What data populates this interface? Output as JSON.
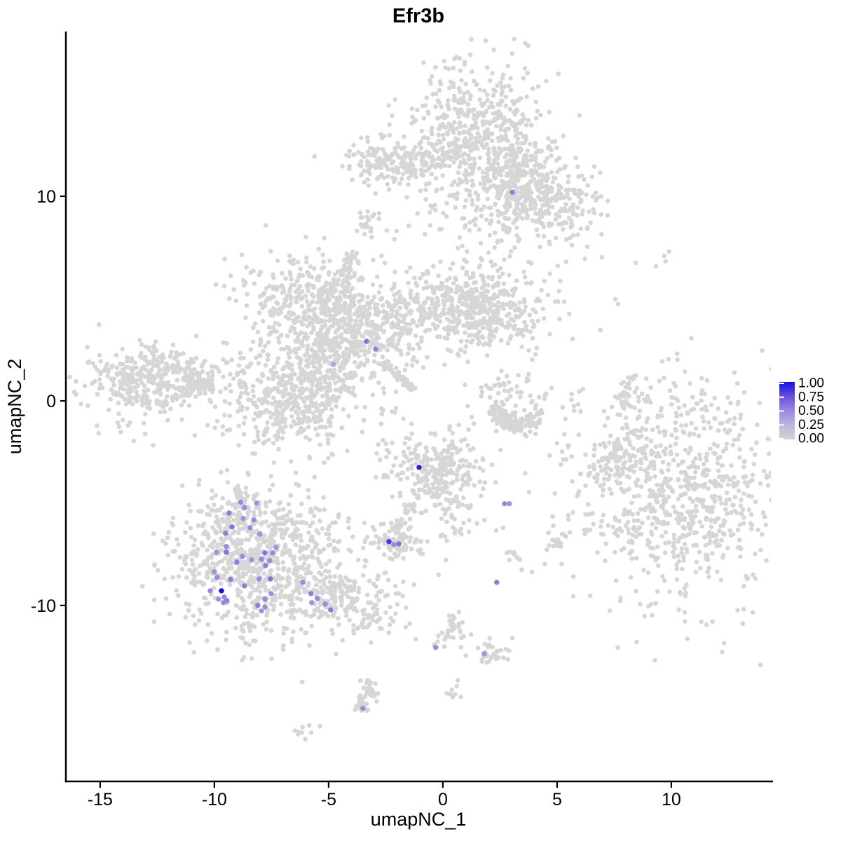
{
  "title": "Efr3b",
  "axes": {
    "x_label": "umapNC_1",
    "y_label": "umapNC_2",
    "x_ticks": [
      -15,
      -10,
      -5,
      0,
      5,
      10
    ],
    "y_ticks": [
      10,
      0,
      -10
    ]
  },
  "legend": {
    "labels": [
      "1.00",
      "0.75",
      "0.50",
      "0.25",
      "0.00"
    ],
    "values": [
      1.0,
      0.75,
      0.5,
      0.25,
      0.0
    ]
  },
  "colors": {
    "background": "#FFFFFF",
    "axis": "#000000",
    "point_gray": "#D6D6D6",
    "ramp": [
      [
        0,
        "#D3D3D3"
      ],
      [
        0.25,
        "#BFB5E3"
      ],
      [
        0.5,
        "#9D87DF"
      ],
      [
        0.75,
        "#6A4FDC"
      ],
      [
        1,
        "#1212E8"
      ]
    ]
  },
  "chart_data": {
    "type": "scatter",
    "title": "Efr3b",
    "xlabel": "umapNC_1",
    "ylabel": "umapNC_2",
    "xlim": [
      -16.47,
      14.36
    ],
    "ylim": [
      -18.6,
      18.05
    ],
    "x_ticks": [
      -15,
      -10,
      -5,
      0,
      5,
      10
    ],
    "y_ticks": [
      10,
      0,
      -10
    ],
    "legend_ticks": [
      1.0,
      0.75,
      0.5,
      0.25,
      0.0
    ],
    "point_radius_gray": 3.3,
    "point_radius_expressing": 3.7,
    "gray_clusters": [
      {
        "name": "top-main",
        "kind": "blob",
        "cx": 1.5,
        "cy": 13.3,
        "sx": 1.35,
        "sy": 1.75,
        "n": 480
      },
      {
        "name": "top-mid",
        "kind": "blob",
        "cx": 3.3,
        "cy": 11.2,
        "sx": 1.0,
        "sy": 1.0,
        "n": 200
      },
      {
        "name": "top-right-arm",
        "kind": "blob",
        "cx": 4.7,
        "cy": 9.6,
        "sx": 1.15,
        "sy": 0.95,
        "n": 230
      },
      {
        "name": "top-left-arm",
        "kind": "blob",
        "cx": -2.95,
        "cy": 11.8,
        "sx": 0.75,
        "sy": 0.65,
        "n": 90
      },
      {
        "name": "top-left-arm2",
        "kind": "blob",
        "cx": -1.6,
        "cy": 11.5,
        "sx": 0.9,
        "sy": 0.4,
        "n": 70
      },
      {
        "name": "top-left-connector",
        "kind": "blob",
        "cx": -0.3,
        "cy": 11.9,
        "sx": 0.8,
        "sy": 0.5,
        "n": 60
      },
      {
        "name": "top-below-sparse",
        "kind": "blob",
        "cx": 1.6,
        "cy": 9.0,
        "sx": 1.6,
        "sy": 0.9,
        "n": 80
      },
      {
        "name": "top-mini",
        "kind": "blob",
        "cx": 3.1,
        "cy": 10.3,
        "sx": 0.55,
        "sy": 0.3,
        "n": 26
      },
      {
        "name": "top-tiny",
        "kind": "blob",
        "cx": -3.3,
        "cy": 8.9,
        "sx": 0.3,
        "sy": 0.45,
        "n": 22
      },
      {
        "name": "center-nw",
        "kind": "blob",
        "cx": -5.75,
        "cy": 4.9,
        "sx": 1.5,
        "sy": 1.1,
        "n": 360
      },
      {
        "name": "center-up-strand",
        "kind": "strand",
        "x1": -4.35,
        "y1": 5.6,
        "x2": -3.95,
        "y2": 7.3,
        "w": 0.18,
        "bow": 0,
        "n": 40
      },
      {
        "name": "center-core",
        "kind": "blob",
        "cx": -3.4,
        "cy": 3.4,
        "sx": 1.3,
        "sy": 1.0,
        "n": 320
      },
      {
        "name": "center-ne-arm",
        "kind": "blob",
        "cx": 0.9,
        "cy": 4.6,
        "sx": 2.1,
        "sy": 1.05,
        "n": 430
      },
      {
        "name": "center-ne-knob",
        "kind": "blob",
        "cx": 1.8,
        "cy": 4.2,
        "sx": 0.7,
        "sy": 0.85,
        "n": 150
      },
      {
        "name": "center-se-streak",
        "kind": "strand",
        "x1": -2.64,
        "y1": 1.85,
        "x2": -1.26,
        "y2": 0.55,
        "w": 0.09,
        "bow": 0,
        "n": 60
      },
      {
        "name": "center-sw-lobe",
        "kind": "blob",
        "cx": -6.5,
        "cy": 0.3,
        "sx": 1.65,
        "sy": 1.35,
        "n": 520
      },
      {
        "name": "center-connector",
        "kind": "blob",
        "cx": -5.1,
        "cy": 2.0,
        "sx": 0.8,
        "sy": 0.8,
        "n": 130
      },
      {
        "name": "left-main",
        "kind": "blob",
        "cx": -12.95,
        "cy": 1.05,
        "sx": 1.45,
        "sy": 0.85,
        "n": 380
      },
      {
        "name": "left-tail",
        "kind": "strand",
        "x1": -11.3,
        "y1": 0.96,
        "x2": -10.1,
        "y2": 0.86,
        "w": 0.25,
        "bow": 0,
        "n": 55
      },
      {
        "name": "left-below",
        "kind": "blob",
        "cx": -13.9,
        "cy": -1.2,
        "sx": 0.5,
        "sy": 0.5,
        "n": 10
      },
      {
        "name": "crescent",
        "kind": "strand",
        "x1": 2.1,
        "y1": -0.3,
        "x2": 4.3,
        "y2": -0.9,
        "w": 0.3,
        "bow": -0.45,
        "n": 130
      },
      {
        "name": "crescent-above",
        "kind": "blob",
        "cx": 3.0,
        "cy": 0.55,
        "sx": 0.95,
        "sy": 0.55,
        "n": 48
      },
      {
        "name": "right-strand",
        "kind": "strand",
        "x1": 7.85,
        "y1": -0.35,
        "x2": 8.35,
        "y2": 1.3,
        "w": 0.13,
        "bow": 0.15,
        "n": 42
      },
      {
        "name": "right-strand-dots",
        "kind": "blob",
        "cx": 8.8,
        "cy": 0.3,
        "sx": 0.25,
        "sy": 0.4,
        "n": 6
      },
      {
        "name": "right-main",
        "kind": "blob",
        "cx": 10.3,
        "cy": -4.5,
        "sx": 2.5,
        "sy": 2.7,
        "n": 850
      },
      {
        "name": "right-appendage",
        "kind": "blob",
        "cx": 7.6,
        "cy": -3.1,
        "sx": 0.45,
        "sy": 0.75,
        "n": 60
      },
      {
        "name": "mid-small",
        "kind": "blob",
        "cx": -0.2,
        "cy": -3.5,
        "sx": 1.05,
        "sy": 0.95,
        "n": 270
      },
      {
        "name": "mid-trail",
        "kind": "blob",
        "cx": 0.45,
        "cy": -5.3,
        "sx": 0.75,
        "sy": 0.95,
        "n": 40
      },
      {
        "name": "mid-strand",
        "kind": "strand",
        "x1": -1.29,
        "y1": -5.0,
        "x2": -2.21,
        "y2": -6.51,
        "w": 0.12,
        "bow": 0,
        "n": 30
      },
      {
        "name": "mid-blob",
        "kind": "blob",
        "cx": -2.1,
        "cy": -6.9,
        "sx": 0.55,
        "sy": 0.42,
        "n": 75
      },
      {
        "name": "mid-blob-right",
        "kind": "blob",
        "cx": -1.1,
        "cy": -7.3,
        "sx": 0.4,
        "sy": 0.25,
        "n": 6
      },
      {
        "name": "bottomleft-main",
        "kind": "blob",
        "cx": -7.9,
        "cy": -7.7,
        "sx": 1.95,
        "sy": 1.75,
        "n": 800
      },
      {
        "name": "bottomleft-tip",
        "kind": "blob",
        "cx": -8.9,
        "cy": -5.3,
        "sx": 0.6,
        "sy": 0.55,
        "n": 70
      },
      {
        "name": "bottomleft-tail",
        "kind": "blob",
        "cx": -4.6,
        "cy": -9.6,
        "sx": 1.35,
        "sy": 0.7,
        "n": 180
      },
      {
        "name": "bottomleft-tail-tip",
        "kind": "blob",
        "cx": -2.9,
        "cy": -10.6,
        "sx": 0.6,
        "sy": 0.4,
        "n": 30
      },
      {
        "name": "bottomleft-below",
        "kind": "blob",
        "cx": -6.2,
        "cy": -11.7,
        "sx": 0.9,
        "sy": 0.4,
        "n": 10
      },
      {
        "name": "low-strand",
        "kind": "strand",
        "x1": 0.55,
        "y1": -10.2,
        "x2": -0.31,
        "y2": -11.99,
        "w": 0.15,
        "bow": 0.2,
        "n": 28
      },
      {
        "name": "low-dots",
        "kind": "blob",
        "cx": 0.75,
        "cy": -11.6,
        "sx": 0.25,
        "sy": 0.2,
        "n": 6
      },
      {
        "name": "low-blob",
        "kind": "blob",
        "cx": 2.25,
        "cy": -12.5,
        "sx": 0.45,
        "sy": 0.35,
        "n": 30
      },
      {
        "name": "low-tiny",
        "kind": "blob",
        "cx": 0.6,
        "cy": -14.0,
        "sx": 0.2,
        "sy": 0.3,
        "n": 8
      },
      {
        "name": "bottom-snake",
        "kind": "strand",
        "x1": -3.34,
        "y1": -13.6,
        "x2": -3.56,
        "y2": -15.2,
        "w": 0.2,
        "bow": 0.15,
        "n": 55
      },
      {
        "name": "bottom-left-tiny",
        "kind": "blob",
        "cx": -6.1,
        "cy": -16.2,
        "sx": 0.35,
        "sy": 0.25,
        "n": 9
      },
      {
        "name": "small-right-low",
        "kind": "blob",
        "cx": 4.85,
        "cy": -6.85,
        "sx": 0.3,
        "sy": 0.35,
        "n": 16
      },
      {
        "name": "small-mid-low",
        "kind": "blob",
        "cx": 3.25,
        "cy": -7.6,
        "sx": 0.25,
        "sy": 0.2,
        "n": 10
      }
    ],
    "sparse_points": [
      [
        6.96,
        7.02
      ],
      [
        8.44,
        6.75
      ],
      [
        9.33,
        6.58
      ],
      [
        9.69,
        7.09
      ],
      [
        9.75,
        6.82
      ],
      [
        7.55,
        4.97
      ],
      [
        7.67,
        4.73
      ],
      [
        9.9,
        7.3
      ],
      [
        7.76,
        -0.68
      ],
      [
        8.01,
        -0.82
      ]
    ],
    "expressing_cells": [
      [
        3.04,
        10.2,
        0.55
      ],
      [
        -3.34,
        2.91,
        0.6
      ],
      [
        -2.94,
        2.53,
        0.55
      ],
      [
        -4.79,
        1.78,
        0.35
      ],
      [
        -1.04,
        -3.25,
        0.95
      ],
      [
        2.7,
        -5.03,
        0.5
      ],
      [
        2.91,
        -5.03,
        0.45
      ],
      [
        -2.36,
        -6.88,
        0.85
      ],
      [
        -2.15,
        -7.02,
        0.5
      ],
      [
        -1.93,
        -6.99,
        0.6
      ],
      [
        2.36,
        -8.87,
        0.55
      ],
      [
        -0.31,
        -12.05,
        0.5
      ],
      [
        1.81,
        -12.36,
        0.45
      ],
      [
        -3.5,
        -15.03,
        0.5
      ],
      [
        -8.85,
        -4.95,
        0.5
      ],
      [
        -8.15,
        -5.0,
        0.45
      ],
      [
        -8.68,
        -5.21,
        0.5
      ],
      [
        -9.36,
        -5.48,
        0.55
      ],
      [
        -8.74,
        -5.75,
        0.45
      ],
      [
        -8.28,
        -5.82,
        0.5
      ],
      [
        -9.23,
        -6.16,
        0.6
      ],
      [
        -8.44,
        -6.2,
        0.5
      ],
      [
        -8.01,
        -6.51,
        0.45
      ],
      [
        -9.51,
        -6.47,
        0.55
      ],
      [
        -9.48,
        -7.12,
        0.5
      ],
      [
        -9.91,
        -7.4,
        0.45
      ],
      [
        -9.48,
        -7.4,
        0.6
      ],
      [
        -8.77,
        -7.6,
        0.5
      ],
      [
        -9.02,
        -7.88,
        0.55
      ],
      [
        -8.37,
        -7.77,
        0.45
      ],
      [
        -7.94,
        -7.74,
        0.5
      ],
      [
        -7.79,
        -7.43,
        0.6
      ],
      [
        -7.3,
        -7.16,
        0.45
      ],
      [
        -7.45,
        -7.43,
        0.5
      ],
      [
        -7.76,
        -8.05,
        0.55
      ],
      [
        -7.58,
        -7.81,
        0.5
      ],
      [
        -10.0,
        -8.36,
        0.45
      ],
      [
        -9.88,
        -8.63,
        0.5
      ],
      [
        -9.29,
        -8.73,
        0.55
      ],
      [
        -10.18,
        -9.28,
        0.5
      ],
      [
        -9.69,
        -9.28,
        1.0
      ],
      [
        -9.57,
        -9.59,
        0.5
      ],
      [
        -9.45,
        -9.76,
        0.55
      ],
      [
        -9.82,
        -9.69,
        0.45
      ],
      [
        -9.6,
        -9.86,
        0.5
      ],
      [
        -8.68,
        -9.04,
        0.55
      ],
      [
        -8.04,
        -8.7,
        0.5
      ],
      [
        -7.55,
        -8.7,
        0.6
      ],
      [
        -7.52,
        -9.42,
        0.45
      ],
      [
        -7.79,
        -9.69,
        0.5
      ],
      [
        -8.1,
        -10.0,
        0.55
      ],
      [
        -7.79,
        -10.07,
        0.5
      ],
      [
        -7.94,
        -10.27,
        0.45
      ],
      [
        -6.13,
        -8.87,
        0.5
      ],
      [
        -5.77,
        -9.42,
        0.55
      ],
      [
        -5.49,
        -9.66,
        0.5
      ],
      [
        -5.74,
        -9.86,
        0.45
      ],
      [
        -5.15,
        -9.93,
        0.5
      ],
      [
        -4.91,
        -10.21,
        0.55
      ]
    ]
  }
}
